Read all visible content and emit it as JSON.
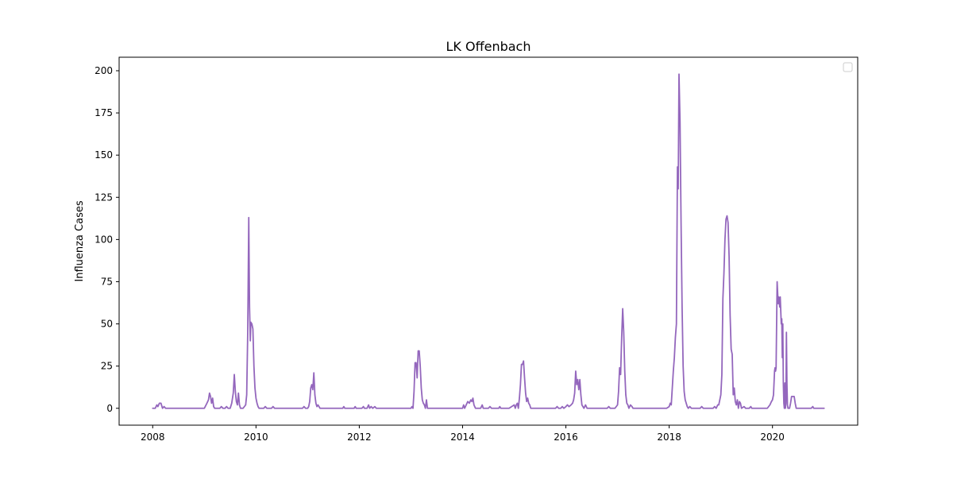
{
  "chart_data": {
    "type": "line",
    "title": "LK Offenbach",
    "xlabel": "",
    "ylabel": "Influenza Cases",
    "xlim": [
      2007.35,
      2021.65
    ],
    "ylim": [
      -10,
      208
    ],
    "x_ticks": [
      2008,
      2010,
      2012,
      2014,
      2016,
      2018,
      2020
    ],
    "x_tick_labels": [
      "2008",
      "2010",
      "2012",
      "2014",
      "2016",
      "2018",
      "2020"
    ],
    "y_ticks": [
      0,
      25,
      50,
      75,
      100,
      125,
      150,
      175,
      200
    ],
    "y_tick_labels": [
      "0",
      "25",
      "50",
      "75",
      "100",
      "125",
      "150",
      "175",
      "200"
    ],
    "legend": {
      "placement": "top-right",
      "entries": []
    },
    "grid": false,
    "series": [
      {
        "name": "LK Offenbach",
        "color": "#9467bd",
        "points": [
          [
            2008.0,
            0
          ],
          [
            2008.05,
            0
          ],
          [
            2008.08,
            2
          ],
          [
            2008.1,
            1
          ],
          [
            2008.13,
            3
          ],
          [
            2008.16,
            3
          ],
          [
            2008.19,
            0
          ],
          [
            2008.22,
            1
          ],
          [
            2008.25,
            0
          ],
          [
            2008.5,
            0
          ],
          [
            2008.8,
            0
          ],
          [
            2009.0,
            0
          ],
          [
            2009.05,
            3
          ],
          [
            2009.08,
            5
          ],
          [
            2009.1,
            9
          ],
          [
            2009.12,
            7
          ],
          [
            2009.14,
            3
          ],
          [
            2009.16,
            6
          ],
          [
            2009.18,
            1
          ],
          [
            2009.2,
            0
          ],
          [
            2009.3,
            0
          ],
          [
            2009.33,
            1
          ],
          [
            2009.36,
            0
          ],
          [
            2009.4,
            0
          ],
          [
            2009.43,
            1
          ],
          [
            2009.46,
            0
          ],
          [
            2009.5,
            0
          ],
          [
            2009.53,
            3
          ],
          [
            2009.56,
            9
          ],
          [
            2009.58,
            20
          ],
          [
            2009.6,
            10
          ],
          [
            2009.62,
            4
          ],
          [
            2009.64,
            2
          ],
          [
            2009.66,
            9
          ],
          [
            2009.68,
            2
          ],
          [
            2009.7,
            0
          ],
          [
            2009.75,
            0
          ],
          [
            2009.8,
            2
          ],
          [
            2009.82,
            8
          ],
          [
            2009.84,
            45
          ],
          [
            2009.86,
            113
          ],
          [
            2009.875,
            60
          ],
          [
            2009.89,
            40
          ],
          [
            2009.9,
            51
          ],
          [
            2009.92,
            50
          ],
          [
            2009.94,
            47
          ],
          [
            2009.96,
            25
          ],
          [
            2009.98,
            12
          ],
          [
            2010.0,
            6
          ],
          [
            2010.02,
            3
          ],
          [
            2010.04,
            1
          ],
          [
            2010.06,
            0
          ],
          [
            2010.15,
            0
          ],
          [
            2010.18,
            1
          ],
          [
            2010.21,
            0
          ],
          [
            2010.3,
            0
          ],
          [
            2010.33,
            1
          ],
          [
            2010.36,
            0
          ],
          [
            2010.6,
            0
          ],
          [
            2010.9,
            0
          ],
          [
            2010.93,
            1
          ],
          [
            2010.96,
            0
          ],
          [
            2011.0,
            0
          ],
          [
            2011.02,
            1
          ],
          [
            2011.04,
            4
          ],
          [
            2011.06,
            12
          ],
          [
            2011.08,
            14
          ],
          [
            2011.1,
            11
          ],
          [
            2011.12,
            21
          ],
          [
            2011.14,
            8
          ],
          [
            2011.16,
            3
          ],
          [
            2011.18,
            1
          ],
          [
            2011.2,
            2
          ],
          [
            2011.22,
            1
          ],
          [
            2011.24,
            0
          ],
          [
            2011.5,
            0
          ],
          [
            2011.68,
            0
          ],
          [
            2011.7,
            1
          ],
          [
            2011.72,
            0
          ],
          [
            2011.9,
            0
          ],
          [
            2011.92,
            1
          ],
          [
            2011.94,
            0
          ],
          [
            2012.05,
            0
          ],
          [
            2012.08,
            1
          ],
          [
            2012.1,
            0
          ],
          [
            2012.15,
            0
          ],
          [
            2012.18,
            2
          ],
          [
            2012.2,
            0
          ],
          [
            2012.23,
            1
          ],
          [
            2012.26,
            0
          ],
          [
            2012.3,
            1
          ],
          [
            2012.33,
            0
          ],
          [
            2012.6,
            0
          ],
          [
            2013.0,
            0
          ],
          [
            2013.02,
            1
          ],
          [
            2013.04,
            0
          ],
          [
            2013.06,
            10
          ],
          [
            2013.08,
            27
          ],
          [
            2013.1,
            27
          ],
          [
            2013.12,
            18
          ],
          [
            2013.14,
            34
          ],
          [
            2013.16,
            34
          ],
          [
            2013.18,
            25
          ],
          [
            2013.2,
            12
          ],
          [
            2013.22,
            5
          ],
          [
            2013.24,
            3
          ],
          [
            2013.26,
            2
          ],
          [
            2013.28,
            0
          ],
          [
            2013.3,
            5
          ],
          [
            2013.32,
            0
          ],
          [
            2013.5,
            0
          ],
          [
            2014.0,
            0
          ],
          [
            2014.02,
            2
          ],
          [
            2014.04,
            0
          ],
          [
            2014.07,
            2
          ],
          [
            2014.1,
            4
          ],
          [
            2014.13,
            3
          ],
          [
            2014.16,
            5
          ],
          [
            2014.18,
            4
          ],
          [
            2014.2,
            6
          ],
          [
            2014.22,
            2
          ],
          [
            2014.25,
            0
          ],
          [
            2014.35,
            0
          ],
          [
            2014.38,
            2
          ],
          [
            2014.4,
            0
          ],
          [
            2014.5,
            0
          ],
          [
            2014.53,
            1
          ],
          [
            2014.56,
            0
          ],
          [
            2014.7,
            0
          ],
          [
            2014.72,
            1
          ],
          [
            2014.74,
            0
          ],
          [
            2014.9,
            0
          ],
          [
            2014.95,
            1
          ],
          [
            2015.0,
            2
          ],
          [
            2015.02,
            0
          ],
          [
            2015.04,
            2
          ],
          [
            2015.06,
            3
          ],
          [
            2015.08,
            0
          ],
          [
            2015.1,
            6
          ],
          [
            2015.12,
            14
          ],
          [
            2015.14,
            26
          ],
          [
            2015.16,
            26
          ],
          [
            2015.18,
            28
          ],
          [
            2015.2,
            18
          ],
          [
            2015.22,
            9
          ],
          [
            2015.24,
            4
          ],
          [
            2015.26,
            6
          ],
          [
            2015.28,
            3
          ],
          [
            2015.3,
            2
          ],
          [
            2015.32,
            0
          ],
          [
            2015.8,
            0
          ],
          [
            2015.83,
            1
          ],
          [
            2015.86,
            0
          ],
          [
            2015.9,
            0
          ],
          [
            2015.93,
            1
          ],
          [
            2015.96,
            0
          ],
          [
            2016.0,
            1
          ],
          [
            2016.03,
            2
          ],
          [
            2016.06,
            1
          ],
          [
            2016.1,
            2
          ],
          [
            2016.13,
            3
          ],
          [
            2016.15,
            5
          ],
          [
            2016.17,
            9
          ],
          [
            2016.19,
            22
          ],
          [
            2016.21,
            14
          ],
          [
            2016.23,
            17
          ],
          [
            2016.25,
            11
          ],
          [
            2016.27,
            17
          ],
          [
            2016.29,
            8
          ],
          [
            2016.31,
            2
          ],
          [
            2016.33,
            1
          ],
          [
            2016.35,
            0
          ],
          [
            2016.38,
            2
          ],
          [
            2016.41,
            0
          ],
          [
            2016.5,
            0
          ],
          [
            2016.8,
            0
          ],
          [
            2016.83,
            1
          ],
          [
            2016.86,
            0
          ],
          [
            2016.9,
            0
          ],
          [
            2016.95,
            0
          ],
          [
            2017.0,
            2
          ],
          [
            2017.02,
            10
          ],
          [
            2017.04,
            24
          ],
          [
            2017.06,
            20
          ],
          [
            2017.08,
            42
          ],
          [
            2017.1,
            59
          ],
          [
            2017.12,
            45
          ],
          [
            2017.14,
            22
          ],
          [
            2017.16,
            8
          ],
          [
            2017.18,
            3
          ],
          [
            2017.2,
            2
          ],
          [
            2017.22,
            0
          ],
          [
            2017.25,
            2
          ],
          [
            2017.28,
            1
          ],
          [
            2017.3,
            0
          ],
          [
            2017.6,
            0
          ],
          [
            2017.9,
            0
          ],
          [
            2017.95,
            0
          ],
          [
            2018.0,
            1
          ],
          [
            2018.02,
            3
          ],
          [
            2018.04,
            2
          ],
          [
            2018.06,
            12
          ],
          [
            2018.08,
            22
          ],
          [
            2018.1,
            30
          ],
          [
            2018.12,
            42
          ],
          [
            2018.14,
            50
          ],
          [
            2018.16,
            143
          ],
          [
            2018.175,
            130
          ],
          [
            2018.19,
            198
          ],
          [
            2018.21,
            170
          ],
          [
            2018.23,
            110
          ],
          [
            2018.25,
            60
          ],
          [
            2018.27,
            25
          ],
          [
            2018.29,
            10
          ],
          [
            2018.31,
            5
          ],
          [
            2018.33,
            3
          ],
          [
            2018.35,
            1
          ],
          [
            2018.37,
            0
          ],
          [
            2018.4,
            1
          ],
          [
            2018.43,
            0
          ],
          [
            2018.6,
            0
          ],
          [
            2018.63,
            1
          ],
          [
            2018.66,
            0
          ],
          [
            2018.8,
            0
          ],
          [
            2018.85,
            0
          ],
          [
            2018.88,
            1
          ],
          [
            2018.91,
            0
          ],
          [
            2018.94,
            2
          ],
          [
            2018.96,
            2
          ],
          [
            2018.98,
            5
          ],
          [
            2019.0,
            8
          ],
          [
            2019.02,
            20
          ],
          [
            2019.04,
            65
          ],
          [
            2019.06,
            80
          ],
          [
            2019.08,
            100
          ],
          [
            2019.1,
            112
          ],
          [
            2019.12,
            114
          ],
          [
            2019.14,
            110
          ],
          [
            2019.16,
            90
          ],
          [
            2019.18,
            55
          ],
          [
            2019.2,
            35
          ],
          [
            2019.22,
            32
          ],
          [
            2019.24,
            8
          ],
          [
            2019.26,
            12
          ],
          [
            2019.28,
            4
          ],
          [
            2019.3,
            2
          ],
          [
            2019.32,
            5
          ],
          [
            2019.34,
            0
          ],
          [
            2019.36,
            4
          ],
          [
            2019.38,
            3
          ],
          [
            2019.4,
            0
          ],
          [
            2019.45,
            1
          ],
          [
            2019.48,
            0
          ],
          [
            2019.55,
            0
          ],
          [
            2019.58,
            1
          ],
          [
            2019.6,
            0
          ],
          [
            2019.9,
            0
          ],
          [
            2019.95,
            2
          ],
          [
            2019.98,
            4
          ],
          [
            2020.0,
            5
          ],
          [
            2020.02,
            8
          ],
          [
            2020.04,
            22
          ],
          [
            2020.05,
            24
          ],
          [
            2020.06,
            22
          ],
          [
            2020.07,
            24
          ],
          [
            2020.09,
            75
          ],
          [
            2020.11,
            62
          ],
          [
            2020.12,
            66
          ],
          [
            2020.14,
            60
          ],
          [
            2020.15,
            66
          ],
          [
            2020.17,
            50
          ],
          [
            2020.18,
            53
          ],
          [
            2020.19,
            30
          ],
          [
            2020.2,
            50
          ],
          [
            2020.21,
            15
          ],
          [
            2020.22,
            3
          ],
          [
            2020.23,
            0
          ],
          [
            2020.24,
            15
          ],
          [
            2020.25,
            0
          ],
          [
            2020.26,
            3
          ],
          [
            2020.27,
            45
          ],
          [
            2020.28,
            15
          ],
          [
            2020.29,
            2
          ],
          [
            2020.3,
            0
          ],
          [
            2020.33,
            0
          ],
          [
            2020.35,
            3
          ],
          [
            2020.37,
            7
          ],
          [
            2020.42,
            7
          ],
          [
            2020.44,
            3
          ],
          [
            2020.46,
            0
          ],
          [
            2020.6,
            0
          ],
          [
            2020.75,
            0
          ],
          [
            2020.78,
            1
          ],
          [
            2020.8,
            0
          ],
          [
            2021.0,
            0
          ]
        ]
      }
    ]
  }
}
